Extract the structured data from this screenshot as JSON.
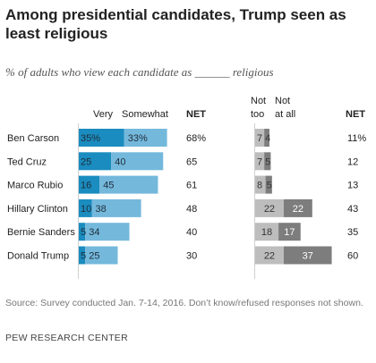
{
  "title": "Among presidential candidates, Trump seen as least religious",
  "subtitle": "% of adults who view each candidate as ______ religious",
  "source": "Source: Survey conducted Jan. 7-14, 2016. Don’t know/refused responses not shown.",
  "brand": "PEW RESEARCH CENTER",
  "colors": {
    "very": "#1a8cbf",
    "somewhat": "#74b8dc",
    "not_too": "#bdbdbd",
    "not_at_all": "#7d7d7d"
  },
  "chart_data": {
    "type": "bar",
    "categories": [
      "Ben Carson",
      "Ted Cruz",
      "Marco Rubio",
      "Hillary Clinton",
      "Bernie Sanders",
      "Donald Trump"
    ],
    "religious_headers": {
      "very": "Very",
      "somewhat": "Somewhat",
      "net": "NET"
    },
    "not_religious_headers": {
      "not_too": "Not too",
      "not_at_all": "Not at all",
      "net": "NET"
    },
    "series": [
      {
        "name": "Very",
        "values": [
          35,
          25,
          16,
          10,
          5,
          5
        ],
        "labels": [
          "35%",
          "25",
          "16",
          "10",
          "5",
          "5"
        ]
      },
      {
        "name": "Somewhat",
        "values": [
          33,
          40,
          45,
          38,
          34,
          25
        ],
        "labels": [
          "33%",
          "40",
          "45",
          "38",
          "34",
          "25"
        ]
      },
      {
        "name": "Not too",
        "values": [
          7,
          7,
          8,
          22,
          18,
          22
        ],
        "labels": [
          "7",
          "7",
          "8",
          "22",
          "18",
          "22"
        ]
      },
      {
        "name": "Not at all",
        "values": [
          4,
          5,
          5,
          22,
          17,
          37
        ],
        "labels": [
          "4",
          "5",
          "5",
          "22",
          "17",
          "37"
        ]
      }
    ],
    "net_religious": [
      "68%",
      "65",
      "61",
      "48",
      "40",
      "30"
    ],
    "net_not_religious": [
      "11%",
      "12",
      "13",
      "43",
      "35",
      "60"
    ]
  }
}
